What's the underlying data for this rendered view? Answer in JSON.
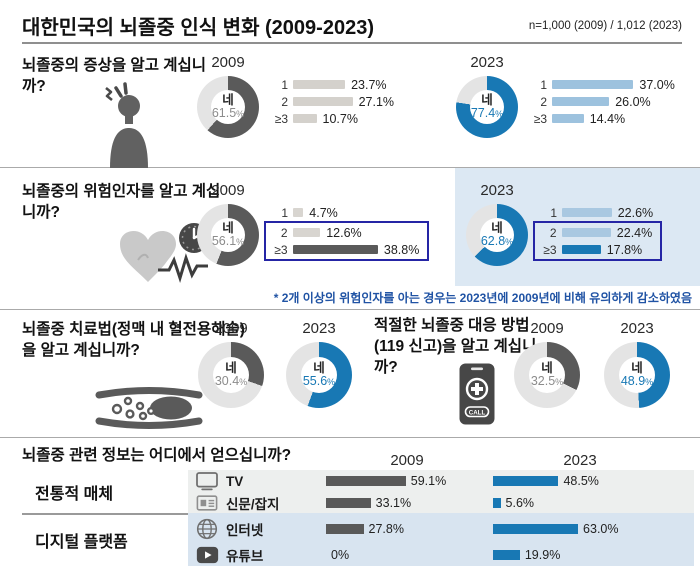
{
  "header": {
    "title": "대한민국의 뇌졸중 인식 변화 (2009-2023)",
    "sample_note": "n=1,000 (2009) / 1,012 (2023)"
  },
  "sections": {
    "symptoms": {
      "question": "뇌졸중의 증상을 알고 계십니까?"
    },
    "risk": {
      "question": "뇌졸중의 위험인자를 알고 계십니까?",
      "footnote": "* 2개 이상의 위험인자를 아는 경우는 2023년에 2009년에 비해 유의하게 감소하였음"
    },
    "treatment": {
      "question": "뇌졸중 치료법(정맥 내 혈전용해술)을 알고 계십니까?"
    },
    "response": {
      "question": "적절한 뇌졸중 대응 방법(119 신고)을 알고 계십니까?"
    },
    "sources": {
      "question": "뇌졸중 관련 정보는 어디에서 얻으십니까?"
    }
  },
  "labels": {
    "yes": "네",
    "call": "CALL"
  },
  "colors": {
    "accent_blue": "#1878b4",
    "light_blue_bar": "#9dc2de",
    "pale_blue_bar": "#a9c8e1",
    "dark_gray": "#5a5a5a",
    "light_gray_bar": "#d4d1cc",
    "donut_rest": "#e4e4e4",
    "panel_blue": "#dce8f3",
    "panel_gray": "#edefee",
    "panel_digital": "#d8e4f0",
    "highlight_border": "#2525a5",
    "footnote_blue": "#2053a4"
  },
  "chart_data": {
    "symptoms_2009": {
      "type": "donut+bar",
      "year": "2009",
      "yes_label": "네",
      "yes_value": 61.5,
      "yes_display": "61.5",
      "pct_suffix": "%",
      "donut_color": "#5a5a5a",
      "pct_color": "#8c8c8c",
      "categories": [
        "1",
        "2",
        "≥3"
      ],
      "values": [
        23.7,
        27.1,
        10.7
      ],
      "value_displays": [
        "23.7%",
        "27.1%",
        "10.7%"
      ],
      "bar_colors": [
        "#d4d1cc",
        "#d4d1cc",
        "#d4d1cc"
      ]
    },
    "symptoms_2023": {
      "type": "donut+bar",
      "year": "2023",
      "yes_label": "네",
      "yes_value": 77.4,
      "yes_display": "77.4",
      "pct_suffix": "%",
      "donut_color": "#1878b4",
      "pct_color": "#1878b4",
      "categories": [
        "1",
        "2",
        "≥3"
      ],
      "values": [
        37.0,
        26.0,
        14.4
      ],
      "value_displays": [
        "37.0%",
        "26.0%",
        "14.4%"
      ],
      "bar_colors": [
        "#9dc2de",
        "#9dc2de",
        "#9dc2de"
      ]
    },
    "risk_2009": {
      "type": "donut+bar",
      "year": "2009",
      "yes_label": "네",
      "yes_value": 56.1,
      "yes_display": "56.1",
      "pct_suffix": "%",
      "donut_color": "#5a5a5a",
      "pct_color": "#8c8c8c",
      "categories": [
        "1",
        "2",
        "≥3"
      ],
      "values": [
        4.7,
        12.6,
        38.8
      ],
      "value_displays": [
        "4.7%",
        "12.6%",
        "38.8%"
      ],
      "bar_colors": [
        "#d8d5d0",
        "#d8d5d0",
        "#5a5a5a"
      ],
      "highlight_rows": [
        1,
        2
      ]
    },
    "risk_2023": {
      "type": "donut+bar",
      "year": "2023",
      "yes_label": "네",
      "yes_value": 62.8,
      "yes_display": "62.8",
      "pct_suffix": "%",
      "donut_color": "#1878b4",
      "pct_color": "#1878b4",
      "categories": [
        "1",
        "2",
        "≥3"
      ],
      "values": [
        22.6,
        22.4,
        17.8
      ],
      "value_displays": [
        "22.6%",
        "22.4%",
        "17.8%"
      ],
      "bar_colors": [
        "#a9c8e1",
        "#a9c8e1",
        "#1878b4"
      ],
      "highlight_rows": [
        1,
        2
      ]
    },
    "treatment_2009": {
      "type": "donut",
      "year": "2009",
      "yes_label": "네",
      "yes_value": 30.4,
      "yes_display": "30.4",
      "pct_suffix": "%",
      "donut_color": "#5a5a5a",
      "pct_color": "#8c8c8c"
    },
    "treatment_2023": {
      "type": "donut",
      "year": "2023",
      "yes_label": "네",
      "yes_value": 55.6,
      "yes_display": "55.6",
      "pct_suffix": "%",
      "donut_color": "#1878b4",
      "pct_color": "#1878b4"
    },
    "response_2009": {
      "type": "donut",
      "year": "2009",
      "yes_label": "네",
      "yes_value": 32.5,
      "yes_display": "32.5",
      "pct_suffix": "%",
      "donut_color": "#5a5a5a",
      "pct_color": "#8c8c8c"
    },
    "response_2023": {
      "type": "donut",
      "year": "2023",
      "yes_label": "네",
      "yes_value": 48.9,
      "yes_display": "48.9",
      "pct_suffix": "%",
      "donut_color": "#1878b4",
      "pct_color": "#1878b4"
    },
    "sources": {
      "type": "bar",
      "year_headers": [
        "2009",
        "2023"
      ],
      "groups": [
        {
          "label": "전통적 매체"
        },
        {
          "label": "디지털 플랫폼"
        }
      ],
      "rows": [
        {
          "icon": "tv-icon",
          "label": "TV",
          "group": 0,
          "values": [
            59.1,
            48.5
          ],
          "displays": [
            "59.1%",
            "48.5%"
          ]
        },
        {
          "icon": "newspaper-icon",
          "label": "신문/잡지",
          "group": 0,
          "values": [
            33.1,
            5.6
          ],
          "displays": [
            "33.1%",
            "5.6%"
          ]
        },
        {
          "icon": "globe-icon",
          "label": "인터넷",
          "group": 1,
          "values": [
            27.8,
            63.0
          ],
          "displays": [
            "27.8%",
            "63.0%"
          ]
        },
        {
          "icon": "youtube-icon",
          "label": "유튜브",
          "group": 1,
          "values": [
            0,
            19.9
          ],
          "displays": [
            "0%",
            "19.9%"
          ]
        }
      ],
      "bar_colors": [
        "#595959",
        "#1878b4"
      ]
    }
  }
}
